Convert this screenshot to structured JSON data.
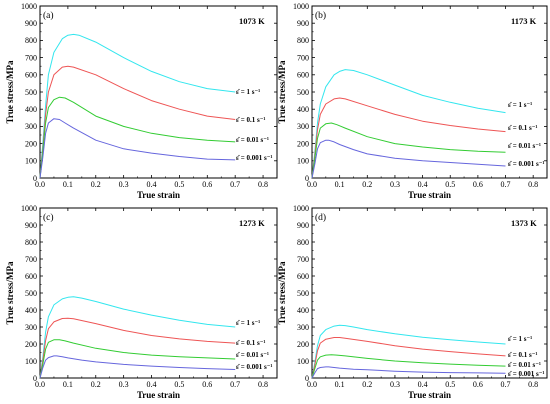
{
  "chart_data": [
    {
      "type": "line",
      "panel_label": "(a)",
      "temperature": "1073 K",
      "xlabel": "True strain",
      "ylabel": "True stress/MPa",
      "xlim": [
        0,
        0.85
      ],
      "ylim": [
        0,
        1000
      ],
      "xticks": [
        "0.0",
        "0.1",
        "0.2",
        "0.3",
        "0.4",
        "0.5",
        "0.6",
        "0.7",
        "0.8"
      ],
      "yticks": [
        "0",
        "100",
        "200",
        "300",
        "400",
        "500",
        "600",
        "700",
        "800",
        "900",
        "1000"
      ],
      "grid": false,
      "series": [
        {
          "name": "ε̇ = 1 s⁻¹",
          "color": "#33e6ee",
          "x": [
            0,
            0.01,
            0.02,
            0.03,
            0.05,
            0.08,
            0.1,
            0.12,
            0.14,
            0.2,
            0.3,
            0.4,
            0.5,
            0.6,
            0.7
          ],
          "y": [
            0,
            200,
            420,
            600,
            730,
            810,
            830,
            835,
            830,
            790,
            700,
            620,
            560,
            520,
            500
          ]
        },
        {
          "name": "ε̇ = 0.1 s⁻¹",
          "color": "#ee5555",
          "x": [
            0,
            0.01,
            0.02,
            0.03,
            0.05,
            0.08,
            0.1,
            0.12,
            0.2,
            0.3,
            0.4,
            0.5,
            0.6,
            0.7
          ],
          "y": [
            0,
            170,
            370,
            500,
            600,
            645,
            650,
            645,
            600,
            520,
            450,
            400,
            360,
            340
          ]
        },
        {
          "name": "ε̇ = 0.01 s⁻¹",
          "color": "#33cc33",
          "x": [
            0,
            0.01,
            0.02,
            0.03,
            0.05,
            0.07,
            0.09,
            0.12,
            0.2,
            0.3,
            0.4,
            0.5,
            0.6,
            0.7
          ],
          "y": [
            0,
            150,
            320,
            410,
            455,
            470,
            465,
            440,
            360,
            300,
            260,
            235,
            220,
            210
          ]
        },
        {
          "name": "ε̇ = 0.001 s⁻¹",
          "color": "#6666dd",
          "x": [
            0,
            0.01,
            0.02,
            0.03,
            0.05,
            0.07,
            0.09,
            0.12,
            0.2,
            0.3,
            0.4,
            0.5,
            0.6,
            0.7
          ],
          "y": [
            0,
            120,
            260,
            320,
            345,
            340,
            320,
            290,
            220,
            170,
            145,
            125,
            110,
            105
          ]
        }
      ]
    },
    {
      "type": "line",
      "panel_label": "(b)",
      "temperature": "1173 K",
      "xlabel": "True strain",
      "ylabel": "True stress/MPa",
      "xlim": [
        0,
        0.85
      ],
      "ylim": [
        0,
        1000
      ],
      "xticks": [
        "0.0",
        "0.1",
        "0.2",
        "0.3",
        "0.4",
        "0.5",
        "0.6",
        "0.7",
        "0.8"
      ],
      "yticks": [
        "0",
        "100",
        "200",
        "300",
        "400",
        "500",
        "600",
        "700",
        "800",
        "900",
        "1000"
      ],
      "grid": false,
      "series": [
        {
          "name": "ε̇ = 1 s⁻¹",
          "color": "#33e6ee",
          "x": [
            0,
            0.01,
            0.02,
            0.03,
            0.05,
            0.08,
            0.1,
            0.12,
            0.15,
            0.2,
            0.3,
            0.4,
            0.5,
            0.6,
            0.7
          ],
          "y": [
            0,
            150,
            320,
            430,
            530,
            600,
            620,
            630,
            625,
            600,
            540,
            480,
            440,
            405,
            380
          ]
        },
        {
          "name": "ε̇ = 0.1 s⁻¹",
          "color": "#ee5555",
          "x": [
            0,
            0.01,
            0.02,
            0.03,
            0.05,
            0.08,
            0.1,
            0.12,
            0.2,
            0.3,
            0.4,
            0.5,
            0.6,
            0.7
          ],
          "y": [
            0,
            130,
            280,
            370,
            430,
            460,
            465,
            460,
            420,
            370,
            330,
            305,
            285,
            270
          ]
        },
        {
          "name": "ε̇ = 0.01 s⁻¹",
          "color": "#33cc33",
          "x": [
            0,
            0.01,
            0.02,
            0.03,
            0.05,
            0.07,
            0.09,
            0.12,
            0.2,
            0.3,
            0.4,
            0.5,
            0.6,
            0.7
          ],
          "y": [
            0,
            110,
            230,
            290,
            315,
            320,
            310,
            290,
            240,
            200,
            180,
            165,
            155,
            150
          ]
        },
        {
          "name": "ε̇ = 0.001 s⁻¹",
          "color": "#6666dd",
          "x": [
            0,
            0.01,
            0.02,
            0.03,
            0.05,
            0.06,
            0.08,
            0.1,
            0.15,
            0.2,
            0.3,
            0.4,
            0.5,
            0.6,
            0.7
          ],
          "y": [
            0,
            80,
            170,
            205,
            220,
            220,
            210,
            195,
            165,
            140,
            115,
            100,
            90,
            80,
            70
          ]
        }
      ]
    },
    {
      "type": "line",
      "panel_label": "(c)",
      "temperature": "1273 K",
      "xlabel": "True strain",
      "ylabel": "True stress/MPa",
      "xlim": [
        0,
        0.85
      ],
      "ylim": [
        0,
        1000
      ],
      "xticks": [
        "0.0",
        "0.1",
        "0.2",
        "0.3",
        "0.4",
        "0.5",
        "0.6",
        "0.7",
        "0.8"
      ],
      "yticks": [
        "0",
        "100",
        "200",
        "300",
        "400",
        "500",
        "600",
        "700",
        "800",
        "900",
        "1000"
      ],
      "grid": false,
      "series": [
        {
          "name": "ε̇ = 1 s⁻¹",
          "color": "#33e6ee",
          "x": [
            0,
            0.01,
            0.02,
            0.03,
            0.05,
            0.08,
            0.1,
            0.12,
            0.15,
            0.2,
            0.3,
            0.4,
            0.5,
            0.6,
            0.7
          ],
          "y": [
            0,
            120,
            270,
            360,
            430,
            465,
            475,
            478,
            470,
            450,
            405,
            370,
            340,
            315,
            300
          ]
        },
        {
          "name": "ε̇ = 0.1 s⁻¹",
          "color": "#ee5555",
          "x": [
            0,
            0.01,
            0.02,
            0.03,
            0.05,
            0.08,
            0.1,
            0.12,
            0.2,
            0.3,
            0.4,
            0.5,
            0.6,
            0.7
          ],
          "y": [
            0,
            100,
            220,
            290,
            330,
            350,
            352,
            348,
            320,
            280,
            250,
            230,
            215,
            205
          ]
        },
        {
          "name": "ε̇ = 0.01 s⁻¹",
          "color": "#33cc33",
          "x": [
            0,
            0.01,
            0.02,
            0.03,
            0.05,
            0.07,
            0.09,
            0.12,
            0.2,
            0.3,
            0.4,
            0.5,
            0.6,
            0.7
          ],
          "y": [
            0,
            80,
            170,
            210,
            225,
            225,
            218,
            205,
            175,
            150,
            135,
            125,
            118,
            112
          ]
        },
        {
          "name": "ε̇ = 0.001 s⁻¹",
          "color": "#6666dd",
          "x": [
            0,
            0.01,
            0.02,
            0.03,
            0.05,
            0.06,
            0.08,
            0.1,
            0.15,
            0.2,
            0.3,
            0.4,
            0.5,
            0.6,
            0.7
          ],
          "y": [
            0,
            60,
            105,
            120,
            130,
            130,
            125,
            118,
            105,
            95,
            80,
            70,
            62,
            55,
            50
          ]
        }
      ]
    },
    {
      "type": "line",
      "panel_label": "(d)",
      "temperature": "1373 K",
      "xlabel": "True strain",
      "ylabel": "True stress/MPa",
      "xlim": [
        0,
        0.85
      ],
      "ylim": [
        0,
        1000
      ],
      "xticks": [
        "0.0",
        "0.1",
        "0.2",
        "0.3",
        "0.4",
        "0.5",
        "0.6",
        "0.7",
        "0.8"
      ],
      "yticks": [
        "0",
        "100",
        "200",
        "300",
        "400",
        "500",
        "600",
        "700",
        "800",
        "900",
        "1000"
      ],
      "grid": false,
      "series": [
        {
          "name": "ε̇ = 1 s⁻¹",
          "color": "#33e6ee",
          "x": [
            0,
            0.01,
            0.02,
            0.03,
            0.05,
            0.08,
            0.1,
            0.12,
            0.15,
            0.2,
            0.3,
            0.4,
            0.5,
            0.6,
            0.7
          ],
          "y": [
            0,
            90,
            190,
            250,
            285,
            305,
            310,
            308,
            300,
            285,
            260,
            240,
            225,
            212,
            200
          ]
        },
        {
          "name": "ε̇ = 0.1 s⁻¹",
          "color": "#ee5555",
          "x": [
            0,
            0.01,
            0.02,
            0.03,
            0.05,
            0.08,
            0.1,
            0.12,
            0.2,
            0.3,
            0.4,
            0.5,
            0.6,
            0.7
          ],
          "y": [
            0,
            75,
            160,
            205,
            228,
            238,
            238,
            234,
            215,
            190,
            170,
            155,
            142,
            130
          ]
        },
        {
          "name": "ε̇ = 0.01 s⁻¹",
          "color": "#33cc33",
          "x": [
            0,
            0.01,
            0.02,
            0.03,
            0.05,
            0.07,
            0.09,
            0.12,
            0.2,
            0.3,
            0.4,
            0.5,
            0.6,
            0.7
          ],
          "y": [
            0,
            55,
            105,
            125,
            135,
            137,
            135,
            130,
            115,
            100,
            90,
            82,
            75,
            70
          ]
        },
        {
          "name": "ε̇ = 0.001 s⁻¹",
          "color": "#6666dd",
          "x": [
            0,
            0.01,
            0.02,
            0.03,
            0.05,
            0.06,
            0.08,
            0.1,
            0.15,
            0.2,
            0.3,
            0.4,
            0.5,
            0.6,
            0.7
          ],
          "y": [
            0,
            30,
            55,
            62,
            65,
            65,
            62,
            58,
            52,
            48,
            40,
            35,
            32,
            30,
            28
          ]
        }
      ]
    }
  ]
}
